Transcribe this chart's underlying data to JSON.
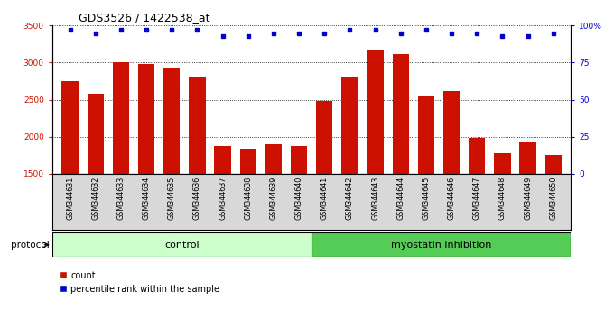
{
  "title": "GDS3526 / 1422538_at",
  "samples": [
    "GSM344631",
    "GSM344632",
    "GSM344633",
    "GSM344634",
    "GSM344635",
    "GSM344636",
    "GSM344637",
    "GSM344638",
    "GSM344639",
    "GSM344640",
    "GSM344641",
    "GSM344642",
    "GSM344643",
    "GSM344644",
    "GSM344645",
    "GSM344646",
    "GSM344647",
    "GSM344648",
    "GSM344649",
    "GSM344650"
  ],
  "counts": [
    2750,
    2580,
    3000,
    2980,
    2920,
    2800,
    1880,
    1840,
    1900,
    1880,
    2480,
    2800,
    3170,
    3120,
    2560,
    2620,
    1980,
    1780,
    1920,
    1760
  ],
  "percentiles": [
    97,
    95,
    97,
    97,
    97,
    97,
    93,
    93,
    95,
    95,
    95,
    97,
    97,
    95,
    97,
    95,
    95,
    93,
    93,
    95
  ],
  "bar_color": "#cc1100",
  "dot_color": "#0000cc",
  "ylim_left": [
    1500,
    3500
  ],
  "ylim_right": [
    0,
    100
  ],
  "yticks_left": [
    1500,
    2000,
    2500,
    3000,
    3500
  ],
  "yticks_right": [
    0,
    25,
    50,
    75,
    100
  ],
  "control_count": 10,
  "myostatin_count": 10,
  "control_label": "control",
  "myostatin_label": "myostatin inhibition",
  "protocol_label": "protocol",
  "legend_count_label": "count",
  "legend_percentile_label": "percentile rank within the sample",
  "xtick_bg": "#d8d8d8",
  "control_bg": "#ccffcc",
  "myostatin_bg": "#55cc55",
  "title_fontsize": 9,
  "tick_fontsize": 6.5,
  "bar_width": 0.65
}
